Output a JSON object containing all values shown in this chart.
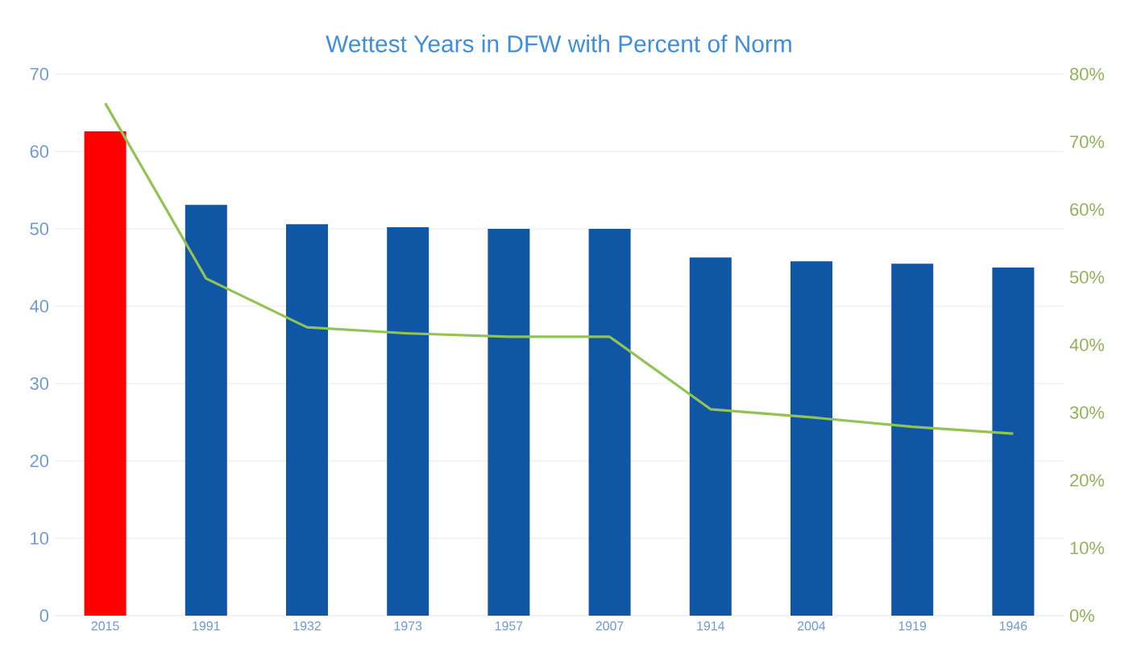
{
  "chart_data": {
    "type": "bar",
    "title": "Wettest Years in DFW with Percent of Norm",
    "categories": [
      "2015",
      "1991",
      "1932",
      "1973",
      "1957",
      "2007",
      "1914",
      "2004",
      "1919",
      "1946"
    ],
    "series": [
      {
        "colors": [
          "#ff0000",
          "#0f56a5",
          "#0f56a5",
          "#0f56a5",
          "#0f56a5",
          "#0f56a5",
          "#0f56a5",
          "#0f56a5",
          "#0f56a5",
          "#0f56a5"
        ],
        "values": [
          62.6,
          53.1,
          50.6,
          50.2,
          50.0,
          50.0,
          46.3,
          45.8,
          45.5,
          45.0
        ]
      },
      {
        "type": "line",
        "axis": "y2",
        "color": "#92c353",
        "values": [
          75.7,
          49.8,
          42.6,
          41.7,
          41.2,
          41.2,
          30.5,
          29.3,
          27.9,
          26.9
        ]
      }
    ],
    "ylim": [
      0,
      70
    ],
    "yticks": [
      0,
      10,
      20,
      30,
      40,
      50,
      60,
      70
    ],
    "y2lim": [
      0,
      80
    ],
    "y2ticks": [
      {
        "value": 0,
        "label": "0%"
      },
      {
        "value": 10,
        "label": "10%"
      },
      {
        "value": 20,
        "label": "20%"
      },
      {
        "value": 30,
        "label": "30%"
      },
      {
        "value": 40,
        "label": "40%"
      },
      {
        "value": 50,
        "label": "50%"
      },
      {
        "value": 60,
        "label": "60%"
      },
      {
        "value": 70,
        "label": "70%"
      },
      {
        "value": 80,
        "label": "80%"
      }
    ],
    "grid": "y"
  }
}
